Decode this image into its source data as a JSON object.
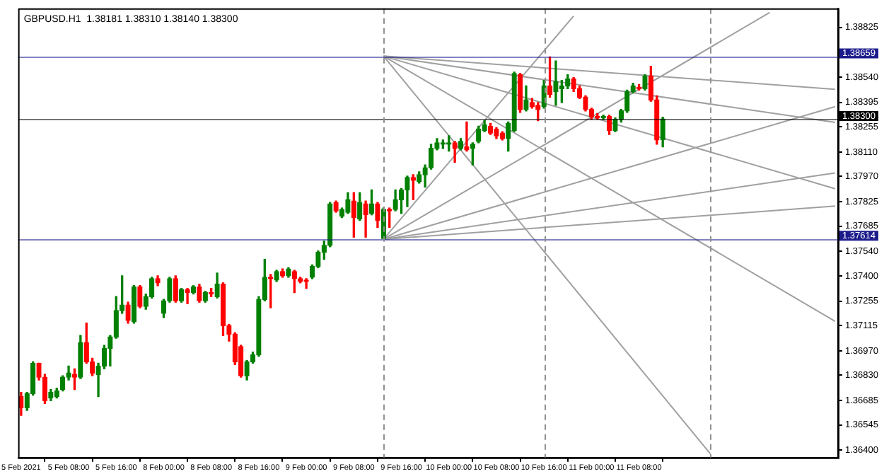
{
  "chart_data": {
    "type": "candlestick",
    "title": "GBPUSD.H1  1.38181 1.38310 1.38140 1.38300",
    "categories": [
      "5 Feb 2021",
      null,
      null,
      null,
      null,
      null,
      null,
      null,
      "5 Feb 08:00",
      null,
      null,
      null,
      null,
      null,
      null,
      null,
      "5 Feb 16:00",
      null,
      null,
      null,
      null,
      null,
      null,
      null,
      "8 Feb 00:00",
      null,
      null,
      null,
      null,
      null,
      null,
      null,
      "8 Feb 08:00",
      null,
      null,
      null,
      null,
      null,
      null,
      null,
      "8 Feb 16:00",
      null,
      null,
      null,
      null,
      null,
      null,
      null,
      "9 Feb 00:00",
      null,
      null,
      null,
      null,
      null,
      null,
      null,
      "9 Feb 08:00",
      null,
      null,
      null,
      null,
      null,
      null,
      null,
      "9 Feb 16:00",
      null,
      null,
      null,
      null,
      null,
      null,
      null,
      "10 Feb 00:00",
      null,
      null,
      null,
      null,
      null,
      null,
      null,
      "10 Feb 08:00",
      null,
      null,
      null,
      null,
      null,
      null,
      null,
      "10 Feb 16:00",
      null,
      null,
      null,
      null,
      null,
      null,
      null,
      "11 Feb 00:00",
      null,
      null,
      null,
      null,
      null,
      null,
      null,
      "11 Feb 08:00",
      null,
      null,
      null,
      null,
      null,
      null,
      null,
      null,
      null,
      null,
      null,
      null,
      null,
      null,
      null,
      null,
      null,
      null,
      null,
      null,
      null,
      null,
      null,
      null,
      null,
      null,
      null,
      null,
      null,
      null,
      null,
      null,
      null
    ],
    "ohlc": [
      [
        1.36708,
        1.36732,
        1.366,
        1.36644
      ],
      [
        1.36644,
        1.36732,
        1.36629,
        1.36724
      ],
      [
        1.36724,
        1.36907,
        1.36716,
        1.36899
      ],
      [
        1.36899,
        1.36899,
        1.36803,
        1.36819
      ],
      [
        1.36819,
        1.36835,
        1.36668,
        1.36684
      ],
      [
        1.367,
        1.36748,
        1.36684,
        1.36732
      ],
      [
        1.36708,
        1.36756,
        1.367,
        1.3674
      ],
      [
        1.36748,
        1.36827,
        1.3674,
        1.36819
      ],
      [
        1.36819,
        1.36883,
        1.36803,
        1.36843
      ],
      [
        1.36835,
        1.36867,
        1.36748,
        1.36819
      ],
      [
        1.36819,
        1.37058,
        1.36811,
        1.37018
      ],
      [
        1.37018,
        1.37129,
        1.36899,
        1.36907
      ],
      [
        1.36907,
        1.36928,
        1.36827,
        1.36843
      ],
      [
        1.36835,
        1.36899,
        1.36708,
        1.36883
      ],
      [
        1.36883,
        1.37002,
        1.36867,
        1.36984
      ],
      [
        1.36984,
        1.37058,
        1.36883,
        1.3705
      ],
      [
        1.3705,
        1.37281,
        1.37042,
        1.37201
      ],
      [
        1.37201,
        1.374,
        1.37185,
        1.37233
      ],
      [
        1.37233,
        1.37249,
        1.37129,
        1.37145
      ],
      [
        1.37137,
        1.37344,
        1.37129,
        1.37336
      ],
      [
        1.37336,
        1.37344,
        1.37217,
        1.37225
      ],
      [
        1.37225,
        1.37296,
        1.37209,
        1.37281
      ],
      [
        1.37281,
        1.37392,
        1.37273,
        1.37384
      ],
      [
        1.37384,
        1.374,
        1.37344,
        1.3736
      ],
      [
        1.37185,
        1.37265,
        1.37161,
        1.37257
      ],
      [
        1.37257,
        1.37392,
        1.37249,
        1.37384
      ],
      [
        1.37384,
        1.374,
        1.37249,
        1.37257
      ],
      [
        1.37257,
        1.37328,
        1.37249,
        1.3732
      ],
      [
        1.3732,
        1.37328,
        1.37241,
        1.37304
      ],
      [
        1.37304,
        1.37344,
        1.37296,
        1.37336
      ],
      [
        1.37336,
        1.37352,
        1.37249,
        1.37257
      ],
      [
        1.37257,
        1.37312,
        1.37249,
        1.37304
      ],
      [
        1.37304,
        1.37328,
        1.37281,
        1.37296
      ],
      [
        1.37281,
        1.37416,
        1.37273,
        1.37352
      ],
      [
        1.37352,
        1.3736,
        1.37058,
        1.37114
      ],
      [
        1.37114,
        1.37122,
        1.37026,
        1.37066
      ],
      [
        1.37066,
        1.37074,
        1.36891,
        1.36907
      ],
      [
        1.36994,
        1.37002,
        1.36819,
        1.36827
      ],
      [
        1.36827,
        1.36915,
        1.36803,
        1.36907
      ],
      [
        1.36907,
        1.36963,
        1.36899,
        1.36947
      ],
      [
        1.36947,
        1.37281,
        1.36939,
        1.37265
      ],
      [
        1.37265,
        1.37495,
        1.37257,
        1.37392
      ],
      [
        1.37392,
        1.37408,
        1.37217,
        1.37384
      ],
      [
        1.37376,
        1.37432,
        1.37368,
        1.37424
      ],
      [
        1.37424,
        1.3744,
        1.37392,
        1.374
      ],
      [
        1.374,
        1.37447,
        1.37392,
        1.3744
      ],
      [
        1.37424,
        1.37432,
        1.37304,
        1.37384
      ],
      [
        1.37384,
        1.37392,
        1.3736,
        1.37368
      ],
      [
        1.37376,
        1.37384,
        1.37328,
        1.37368
      ],
      [
        1.37392,
        1.37463,
        1.37384,
        1.37455
      ],
      [
        1.37455,
        1.37543,
        1.37447,
        1.37535
      ],
      [
        1.37535,
        1.37599,
        1.37495,
        1.37575
      ],
      [
        1.37575,
        1.37821,
        1.37567,
        1.37813
      ],
      [
        1.37821,
        1.37829,
        1.37765,
        1.37773
      ],
      [
        1.37742,
        1.37789,
        1.37734,
        1.37781
      ],
      [
        1.37765,
        1.37877,
        1.37758,
        1.37837
      ],
      [
        1.37829,
        1.37877,
        1.37622,
        1.37734
      ],
      [
        1.37726,
        1.37877,
        1.37718,
        1.37821
      ],
      [
        1.37813,
        1.37829,
        1.37622,
        1.3775
      ],
      [
        1.37758,
        1.37893,
        1.3775,
        1.37813
      ],
      [
        1.37813,
        1.37821,
        1.37678,
        1.37718
      ],
      [
        1.37614,
        1.37789,
        1.37614,
        1.37781
      ],
      [
        1.37781,
        1.37789,
        1.37678,
        1.37773
      ],
      [
        1.37781,
        1.37893,
        1.37773,
        1.37837
      ],
      [
        1.37837,
        1.37901,
        1.37758,
        1.37893
      ],
      [
        1.37893,
        1.37972,
        1.37797,
        1.37964
      ],
      [
        1.37964,
        1.3798,
        1.37837,
        1.37948
      ],
      [
        1.3794,
        1.37996,
        1.37932,
        1.3798
      ],
      [
        1.3798,
        1.38036,
        1.37909,
        1.3802
      ],
      [
        1.3802,
        1.38155,
        1.38012,
        1.38131
      ],
      [
        1.38131,
        1.38187,
        1.38123,
        1.38163
      ],
      [
        1.38155,
        1.38179,
        1.38131,
        1.38163
      ],
      [
        1.38155,
        1.38203,
        1.38115,
        1.38163
      ],
      [
        1.38163,
        1.38171,
        1.38052,
        1.38131
      ],
      [
        1.38131,
        1.38187,
        1.38123,
        1.38171
      ],
      [
        1.38139,
        1.38282,
        1.38115,
        1.38123
      ],
      [
        1.38131,
        1.38163,
        1.38036,
        1.38155
      ],
      [
        1.38171,
        1.38258,
        1.38163,
        1.38242
      ],
      [
        1.38234,
        1.3829,
        1.38227,
        1.38266
      ],
      [
        1.38258,
        1.38274,
        1.38211,
        1.38219
      ],
      [
        1.38242,
        1.3825,
        1.38187,
        1.38203
      ],
      [
        1.38219,
        1.38227,
        1.38179,
        1.38187
      ],
      [
        1.38187,
        1.38282,
        1.38115,
        1.38274
      ],
      [
        1.38234,
        1.38568,
        1.38227,
        1.3856
      ],
      [
        1.38553,
        1.3856,
        1.38338,
        1.38354
      ],
      [
        1.38354,
        1.38489,
        1.38346,
        1.38409
      ],
      [
        1.38394,
        1.38417,
        1.38362,
        1.3837
      ],
      [
        1.38378,
        1.38394,
        1.3829,
        1.38354
      ],
      [
        1.3837,
        1.38521,
        1.38362,
        1.38489
      ],
      [
        1.38489,
        1.38656,
        1.38425,
        1.38441
      ],
      [
        1.38457,
        1.38632,
        1.38378,
        1.38513
      ],
      [
        1.38473,
        1.38521,
        1.38394,
        1.38489
      ],
      [
        1.38489,
        1.38553,
        1.38473,
        1.38529
      ],
      [
        1.38529,
        1.38537,
        1.38457,
        1.38473
      ],
      [
        1.38473,
        1.38489,
        1.38417,
        1.38425
      ],
      [
        1.38425,
        1.38433,
        1.38346,
        1.38354
      ],
      [
        1.38354,
        1.38362,
        1.38298,
        1.38314
      ],
      [
        1.38314,
        1.3833,
        1.38298,
        1.38306
      ],
      [
        1.38306,
        1.38322,
        1.38298,
        1.38314
      ],
      [
        1.38314,
        1.38322,
        1.38211,
        1.38234
      ],
      [
        1.38234,
        1.38306,
        1.38227,
        1.38298
      ],
      [
        1.38298,
        1.38354,
        1.38282,
        1.38346
      ],
      [
        1.38346,
        1.38465,
        1.38338,
        1.38457
      ],
      [
        1.38457,
        1.38505,
        1.38449,
        1.38489
      ],
      [
        1.38481,
        1.38497,
        1.38465,
        1.38473
      ],
      [
        1.38473,
        1.38553,
        1.38465,
        1.38545
      ],
      [
        1.38545,
        1.38602,
        1.38401,
        1.38409
      ],
      [
        1.38409,
        1.38433,
        1.38155,
        1.38179
      ],
      [
        1.38181,
        1.3831,
        1.3814,
        1.383
      ],
      null,
      null,
      null,
      null,
      null,
      null,
      null,
      null,
      null,
      null,
      null,
      null,
      null,
      null,
      null,
      null,
      null,
      null,
      null,
      null,
      null,
      null,
      null,
      null,
      null,
      null,
      null,
      null,
      null
    ],
    "colors": [
      "#ff0000",
      "#008000",
      "#008000",
      "#ff0000",
      "#ff0000",
      "#008000",
      "#008000",
      "#008000",
      "#008000",
      "#ff0000",
      "#008000",
      "#ff0000",
      "#ff0000",
      "#008000",
      "#008000",
      "#008000",
      "#008000",
      "#008000",
      "#ff0000",
      "#008000",
      "#ff0000",
      "#008000",
      "#008000",
      "#ff0000",
      "#008000",
      "#008000",
      "#ff0000",
      "#008000",
      "#ff0000",
      "#008000",
      "#ff0000",
      "#008000",
      "#ff0000",
      "#008000",
      "#ff0000",
      "#ff0000",
      "#ff0000",
      "#ff0000",
      "#008000",
      "#008000",
      "#008000",
      "#008000",
      "#ff0000",
      "#008000",
      "#ff0000",
      "#008000",
      "#ff0000",
      "#ff0000",
      "#ff0000",
      "#008000",
      "#008000",
      "#008000",
      "#008000",
      "#ff0000",
      "#008000",
      "#008000",
      "#ff0000",
      "#008000",
      "#ff0000",
      "#008000",
      "#ff0000",
      "#008000",
      "#ff0000",
      "#008000",
      "#008000",
      "#008000",
      "#ff0000",
      "#008000",
      "#008000",
      "#008000",
      "#008000",
      "#008000",
      "#008000",
      "#ff0000",
      "#008000",
      "#ff0000",
      "#008000",
      "#008000",
      "#008000",
      "#ff0000",
      "#ff0000",
      "#ff0000",
      "#008000",
      "#008000",
      "#ff0000",
      "#008000",
      "#ff0000",
      "#ff0000",
      "#008000",
      "#ff0000",
      "#008000",
      "#008000",
      "#008000",
      "#ff0000",
      "#ff0000",
      "#ff0000",
      "#ff0000",
      "#ff0000",
      "#008000",
      "#ff0000",
      "#008000",
      "#008000",
      "#008000",
      "#008000",
      "#ff0000",
      "#008000",
      "#ff0000",
      "#ff0000",
      "#008000",
      null,
      null,
      null,
      null,
      null,
      null,
      null,
      null,
      null,
      null,
      null,
      null,
      null,
      null,
      null,
      null,
      null,
      null,
      null,
      null,
      null,
      null,
      null,
      null,
      null,
      null,
      null,
      null,
      null
    ],
    "series": [
      {
        "type": "line",
        "color": "#a0a0a0",
        "values": [
          null,
          null,
          null,
          null,
          null,
          null,
          null,
          null,
          null,
          null,
          null,
          null,
          null,
          null,
          null,
          null,
          null,
          null,
          null,
          null,
          null,
          null,
          null,
          null,
          null,
          null,
          null,
          null,
          null,
          null,
          null,
          null,
          null,
          null,
          null,
          null,
          null,
          null,
          null,
          null,
          null,
          null,
          null,
          null,
          null,
          null,
          null,
          null,
          null,
          null,
          null,
          null,
          null,
          null,
          null,
          null,
          null,
          null,
          null,
          null,
          null,
          1.3866,
          null,
          null,
          null,
          null,
          null,
          null,
          null,
          null,
          null,
          null,
          null,
          null,
          null,
          null,
          null,
          null,
          null,
          null,
          null,
          null,
          null,
          null,
          null,
          null,
          null,
          null,
          null,
          null,
          null,
          null,
          null,
          null,
          null,
          null,
          null,
          null,
          null,
          null,
          null,
          null,
          null,
          null,
          null,
          null,
          null,
          null,
          null,
          null,
          null,
          null,
          null,
          null,
          null,
          null,
          null,
          null,
          null,
          null,
          null,
          null,
          null,
          null,
          null,
          null,
          null,
          null,
          null,
          null,
          null,
          null,
          null,
          null,
          null,
          null,
          null,
          1.3847
        ]
      },
      {
        "type": "line",
        "color": "#a0a0a0",
        "values": [
          null,
          null,
          null,
          null,
          null,
          null,
          null,
          null,
          null,
          null,
          null,
          null,
          null,
          null,
          null,
          null,
          null,
          null,
          null,
          null,
          null,
          null,
          null,
          null,
          null,
          null,
          null,
          null,
          null,
          null,
          null,
          null,
          null,
          null,
          null,
          null,
          null,
          null,
          null,
          null,
          null,
          null,
          null,
          null,
          null,
          null,
          null,
          null,
          null,
          null,
          null,
          null,
          null,
          null,
          null,
          null,
          null,
          null,
          null,
          null,
          null,
          1.3866,
          null,
          null,
          null,
          null,
          null,
          null,
          null,
          null,
          null,
          null,
          null,
          null,
          null,
          null,
          null,
          null,
          null,
          null,
          null,
          null,
          null,
          null,
          null,
          null,
          null,
          null,
          null,
          null,
          null,
          null,
          null,
          null,
          null,
          null,
          null,
          null,
          null,
          null,
          null,
          null,
          null,
          null,
          null,
          null,
          null,
          null,
          null,
          null,
          null,
          null,
          null,
          null,
          null,
          null,
          null,
          null,
          null,
          null,
          null,
          null,
          null,
          null,
          null,
          null,
          null,
          null,
          null,
          null,
          null,
          null,
          null,
          null,
          null,
          null,
          null,
          1.3828
        ]
      },
      {
        "type": "line",
        "color": "#a0a0a0",
        "values": [
          null,
          null,
          null,
          null,
          null,
          null,
          null,
          null,
          null,
          null,
          null,
          null,
          null,
          null,
          null,
          null,
          null,
          null,
          null,
          null,
          null,
          null,
          null,
          null,
          null,
          null,
          null,
          null,
          null,
          null,
          null,
          null,
          null,
          null,
          null,
          null,
          null,
          null,
          null,
          null,
          null,
          null,
          null,
          null,
          null,
          null,
          null,
          null,
          null,
          null,
          null,
          null,
          null,
          null,
          null,
          null,
          null,
          null,
          null,
          null,
          null,
          1.3866,
          null,
          null,
          null,
          null,
          null,
          null,
          null,
          null,
          null,
          null,
          null,
          null,
          null,
          null,
          null,
          null,
          null,
          null,
          null,
          null,
          null,
          null,
          null,
          null,
          null,
          null,
          null,
          null,
          null,
          null,
          null,
          null,
          null,
          null,
          null,
          null,
          null,
          null,
          null,
          null,
          null,
          null,
          null,
          null,
          null,
          null,
          null,
          null,
          null,
          null,
          null,
          null,
          null,
          null,
          null,
          null,
          null,
          null,
          null,
          null,
          null,
          null,
          null,
          null,
          null,
          null,
          null,
          null,
          null,
          null,
          null,
          null,
          null,
          null,
          null,
          1.379
        ]
      },
      {
        "type": "line",
        "color": "#a0a0a0",
        "values": [
          null,
          null,
          null,
          null,
          null,
          null,
          null,
          null,
          null,
          null,
          null,
          null,
          null,
          null,
          null,
          null,
          null,
          null,
          null,
          null,
          null,
          null,
          null,
          null,
          null,
          null,
          null,
          null,
          null,
          null,
          null,
          null,
          null,
          null,
          null,
          null,
          null,
          null,
          null,
          null,
          null,
          null,
          null,
          null,
          null,
          null,
          null,
          null,
          null,
          null,
          null,
          null,
          null,
          null,
          null,
          null,
          null,
          null,
          null,
          null,
          null,
          1.3866,
          null,
          null,
          null,
          null,
          null,
          null,
          null,
          null,
          null,
          null,
          null,
          null,
          null,
          null,
          null,
          null,
          null,
          null,
          null,
          null,
          null,
          null,
          null,
          null,
          null,
          null,
          null,
          null,
          null,
          null,
          null,
          null,
          null,
          null,
          null,
          null,
          null,
          null,
          null,
          null,
          null,
          null,
          null,
          null,
          null,
          null,
          null,
          null,
          null,
          null,
          null,
          null,
          null,
          null,
          null,
          null,
          null,
          null,
          null,
          null,
          null,
          null,
          null,
          null,
          null,
          null,
          null,
          null,
          null,
          null,
          null,
          null,
          null,
          null,
          null,
          1.3714
        ]
      },
      {
        "type": "line",
        "color": "#a0a0a0",
        "values": [
          null,
          null,
          null,
          null,
          null,
          null,
          null,
          null,
          null,
          null,
          null,
          null,
          null,
          null,
          null,
          null,
          null,
          null,
          null,
          null,
          null,
          null,
          null,
          null,
          null,
          null,
          null,
          null,
          null,
          null,
          null,
          null,
          null,
          null,
          null,
          null,
          null,
          null,
          null,
          null,
          null,
          null,
          null,
          null,
          null,
          null,
          null,
          null,
          null,
          null,
          null,
          null,
          null,
          null,
          null,
          null,
          null,
          null,
          null,
          null,
          null,
          1.3866,
          null,
          null,
          null,
          null,
          null,
          null,
          null,
          null,
          null,
          null,
          null,
          null,
          null,
          null,
          null,
          null,
          null,
          null,
          null,
          null,
          null,
          null,
          null,
          null,
          null,
          null,
          null,
          null,
          null,
          null,
          null,
          null,
          null,
          null,
          null,
          null,
          null,
          null,
          null,
          null,
          null,
          null,
          null,
          null,
          null,
          null,
          null,
          null,
          null,
          null,
          null,
          null,
          null,
          null,
          1.3638,
          null,
          null,
          null,
          null,
          null,
          null,
          null,
          null,
          null,
          null,
          null,
          null,
          null,
          null,
          null,
          null,
          null,
          null,
          null,
          null,
          null
        ]
      },
      {
        "type": "line",
        "color": "#a0a0a0",
        "values": [
          null,
          null,
          null,
          null,
          null,
          null,
          null,
          null,
          null,
          null,
          null,
          null,
          null,
          null,
          null,
          null,
          null,
          null,
          null,
          null,
          null,
          null,
          null,
          null,
          null,
          null,
          null,
          null,
          null,
          null,
          null,
          null,
          null,
          null,
          null,
          null,
          null,
          null,
          null,
          null,
          null,
          null,
          null,
          null,
          null,
          null,
          null,
          null,
          null,
          null,
          null,
          null,
          null,
          null,
          null,
          null,
          null,
          null,
          null,
          null,
          null,
          1.3761,
          null,
          null,
          null,
          null,
          null,
          null,
          null,
          null,
          null,
          null,
          null,
          null,
          null,
          null,
          null,
          null,
          null,
          null,
          null,
          null,
          null,
          null,
          null,
          null,
          null,
          null,
          null,
          null,
          null,
          null,
          null,
          null,
          null,
          null,
          null,
          null,
          null,
          null,
          null,
          null,
          null,
          null,
          null,
          null,
          null,
          null,
          null,
          null,
          null,
          null,
          null,
          null,
          null,
          null,
          null,
          null,
          null,
          null,
          null,
          null,
          null,
          null,
          null,
          null,
          null,
          null,
          null,
          null,
          null,
          null,
          null,
          null,
          null,
          null,
          null,
          1.378
        ]
      },
      {
        "type": "line",
        "color": "#a0a0a0",
        "values": [
          null,
          null,
          null,
          null,
          null,
          null,
          null,
          null,
          null,
          null,
          null,
          null,
          null,
          null,
          null,
          null,
          null,
          null,
          null,
          null,
          null,
          null,
          null,
          null,
          null,
          null,
          null,
          null,
          null,
          null,
          null,
          null,
          null,
          null,
          null,
          null,
          null,
          null,
          null,
          null,
          null,
          null,
          null,
          null,
          null,
          null,
          null,
          null,
          null,
          null,
          null,
          null,
          null,
          null,
          null,
          null,
          null,
          null,
          null,
          null,
          null,
          1.3761,
          null,
          null,
          null,
          null,
          null,
          null,
          null,
          null,
          null,
          null,
          null,
          null,
          null,
          null,
          null,
          null,
          null,
          null,
          null,
          null,
          null,
          null,
          null,
          null,
          null,
          null,
          null,
          null,
          null,
          null,
          null,
          null,
          null,
          null,
          null,
          null,
          null,
          null,
          null,
          null,
          null,
          null,
          null,
          null,
          null,
          null,
          null,
          null,
          null,
          null,
          null,
          null,
          null,
          null,
          null,
          null,
          null,
          null,
          null,
          null,
          null,
          null,
          null,
          null,
          null,
          null,
          null,
          null,
          null,
          null,
          null,
          null,
          null,
          null,
          null,
          1.3799
        ]
      },
      {
        "type": "line",
        "color": "#a0a0a0",
        "values": [
          null,
          null,
          null,
          null,
          null,
          null,
          null,
          null,
          null,
          null,
          null,
          null,
          null,
          null,
          null,
          null,
          null,
          null,
          null,
          null,
          null,
          null,
          null,
          null,
          null,
          null,
          null,
          null,
          null,
          null,
          null,
          null,
          null,
          null,
          null,
          null,
          null,
          null,
          null,
          null,
          null,
          null,
          null,
          null,
          null,
          null,
          null,
          null,
          null,
          null,
          null,
          null,
          null,
          null,
          null,
          null,
          null,
          null,
          null,
          null,
          null,
          1.3761,
          null,
          null,
          null,
          null,
          null,
          null,
          null,
          null,
          null,
          null,
          null,
          null,
          null,
          null,
          null,
          null,
          null,
          null,
          null,
          null,
          null,
          null,
          null,
          null,
          null,
          null,
          null,
          null,
          null,
          null,
          null,
          null,
          null,
          null,
          null,
          null,
          null,
          null,
          null,
          null,
          null,
          null,
          null,
          null,
          null,
          null,
          null,
          null,
          null,
          null,
          null,
          null,
          null,
          null,
          null,
          null,
          null,
          null,
          null,
          null,
          null,
          null,
          null,
          null,
          null,
          null,
          null,
          null,
          null,
          null,
          null,
          null,
          null,
          null,
          null,
          1.3837
        ]
      },
      {
        "type": "line",
        "color": "#a0a0a0",
        "values": [
          null,
          null,
          null,
          null,
          null,
          null,
          null,
          null,
          null,
          null,
          null,
          null,
          null,
          null,
          null,
          null,
          null,
          null,
          null,
          null,
          null,
          null,
          null,
          null,
          null,
          null,
          null,
          null,
          null,
          null,
          null,
          null,
          null,
          null,
          null,
          null,
          null,
          null,
          null,
          null,
          null,
          null,
          null,
          null,
          null,
          null,
          null,
          null,
          null,
          null,
          null,
          null,
          null,
          null,
          null,
          null,
          null,
          null,
          null,
          null,
          null,
          1.3761,
          null,
          null,
          null,
          null,
          null,
          null,
          null,
          null,
          null,
          null,
          null,
          null,
          null,
          null,
          null,
          null,
          null,
          null,
          null,
          null,
          null,
          null,
          null,
          null,
          null,
          null,
          null,
          null,
          null,
          null,
          null,
          null,
          null,
          null,
          null,
          null,
          null,
          null,
          null,
          null,
          null,
          null,
          null,
          null,
          null,
          null,
          null,
          null,
          null,
          null,
          null,
          null,
          null,
          null,
          null,
          null,
          null,
          null,
          null,
          null,
          null,
          null,
          null,
          null,
          1.3891,
          null,
          null,
          null,
          null,
          null,
          null,
          null,
          null,
          null,
          null,
          null
        ]
      },
      {
        "type": "line",
        "color": "#a0a0a0",
        "values": [
          null,
          null,
          null,
          null,
          null,
          null,
          null,
          null,
          null,
          null,
          null,
          null,
          null,
          null,
          null,
          null,
          null,
          null,
          null,
          null,
          null,
          null,
          null,
          null,
          null,
          null,
          null,
          null,
          null,
          null,
          null,
          null,
          null,
          null,
          null,
          null,
          null,
          null,
          null,
          null,
          null,
          null,
          null,
          null,
          null,
          null,
          null,
          null,
          null,
          null,
          null,
          null,
          null,
          null,
          null,
          null,
          null,
          null,
          null,
          null,
          null,
          1.3761,
          null,
          null,
          null,
          null,
          null,
          null,
          null,
          null,
          null,
          null,
          null,
          null,
          null,
          null,
          null,
          null,
          null,
          null,
          null,
          null,
          null,
          null,
          null,
          null,
          null,
          null,
          null,
          null,
          null,
          null,
          null,
          1.3889,
          null,
          null,
          null,
          null,
          null,
          null,
          null,
          null,
          null,
          null,
          null,
          null,
          null,
          null,
          null,
          null,
          null,
          null,
          null,
          null,
          null,
          null,
          null,
          null,
          null,
          null,
          null,
          null,
          null,
          null,
          null,
          null,
          null,
          null,
          null,
          null,
          null,
          null,
          null,
          null,
          null,
          null,
          null,
          null
        ]
      }
    ],
    "ylim": [
      1.36358,
      1.38934
    ],
    "yticks": [
      1.38825,
      {
        "value": 1.3854,
        "label": "1.38540"
      },
      1.38395,
      1.38255,
      {
        "value": 1.3811,
        "label": "1.38110"
      },
      {
        "value": 1.3797,
        "label": "1.37970"
      },
      1.37825,
      1.37685,
      {
        "value": 1.3754,
        "label": "1.37540"
      },
      {
        "value": 1.374,
        "label": "1.37400"
      },
      1.37255,
      1.37115,
      {
        "value": 1.3697,
        "label": "1.36970"
      },
      {
        "value": 1.3683,
        "label": "1.36830"
      },
      1.36685,
      1.36545,
      {
        "value": 1.364,
        "label": "1.36400"
      }
    ],
    "ref_lines": [
      {
        "axis": "y",
        "value": 1.38659,
        "label": "1.38659",
        "color": "#1c1c8c"
      },
      {
        "axis": "y",
        "value": 1.383,
        "label": "1.38300",
        "color": "#000000"
      },
      {
        "axis": "y",
        "value": 1.37614,
        "label": "1.37614",
        "color": "#1c1c8c"
      }
    ],
    "grid": false,
    "legend": false
  }
}
